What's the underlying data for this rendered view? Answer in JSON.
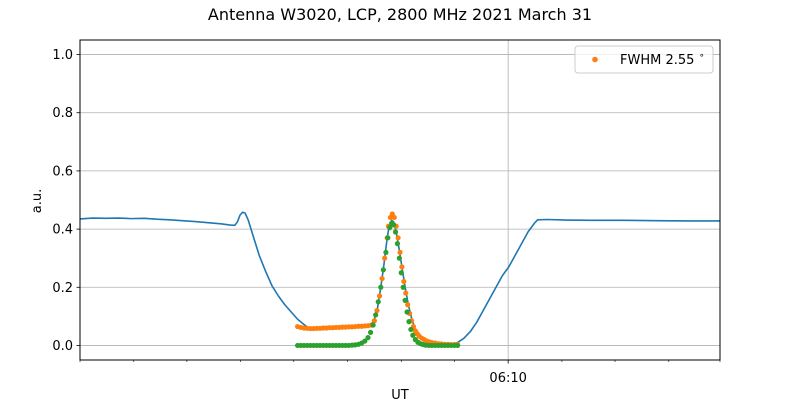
{
  "chart_data": {
    "type": "line",
    "title": "Antenna W3020, LCP, 2800 MHz 2021 March 31",
    "xlabel": "UT",
    "ylabel": "a.u.",
    "xlim": [
      0,
      100
    ],
    "ylim": [
      -0.05,
      1.05
    ],
    "grid": true,
    "legend_position": "top-right",
    "x_major_ticks": [
      {
        "x": 66.9,
        "label": "06:10"
      }
    ],
    "x_minor_ticks": [
      0,
      8.4,
      16.7,
      25.1,
      33.4,
      41.8,
      50.2,
      58.5,
      75.3,
      83.6,
      92.0,
      100
    ],
    "y_ticks": [
      0.0,
      0.2,
      0.4,
      0.6,
      0.8,
      1.0
    ],
    "y_tick_labels": [
      "0.0",
      "0.2",
      "0.4",
      "0.6",
      "0.8",
      "1.0"
    ],
    "series": [
      {
        "name": "",
        "style": "line",
        "color": "#1f77b4",
        "points": [
          [
            0,
            0.435
          ],
          [
            2,
            0.438
          ],
          [
            4,
            0.437
          ],
          [
            6,
            0.438
          ],
          [
            8,
            0.436
          ],
          [
            10,
            0.437
          ],
          [
            12,
            0.434
          ],
          [
            14,
            0.432
          ],
          [
            16,
            0.429
          ],
          [
            18,
            0.426
          ],
          [
            20,
            0.422
          ],
          [
            22,
            0.418
          ],
          [
            23.5,
            0.414
          ],
          [
            24.2,
            0.413
          ],
          [
            24.6,
            0.425
          ],
          [
            25.0,
            0.448
          ],
          [
            25.4,
            0.458
          ],
          [
            25.8,
            0.455
          ],
          [
            26.3,
            0.43
          ],
          [
            27.0,
            0.38
          ],
          [
            28.0,
            0.31
          ],
          [
            29.0,
            0.255
          ],
          [
            30.0,
            0.205
          ],
          [
            31.0,
            0.17
          ],
          [
            32.0,
            0.14
          ],
          [
            33.0,
            0.115
          ],
          [
            34.0,
            0.09
          ],
          [
            35.0,
            0.072
          ],
          [
            35.6,
            0.062
          ],
          [
            36.5,
            0.057
          ],
          [
            38,
            0.058
          ],
          [
            40,
            0.06
          ],
          [
            42,
            0.063
          ],
          [
            44,
            0.066
          ],
          [
            45,
            0.068
          ],
          [
            45.5,
            0.072
          ],
          [
            46.0,
            0.09
          ],
          [
            46.5,
            0.13
          ],
          [
            47.0,
            0.2
          ],
          [
            47.5,
            0.28
          ],
          [
            48.0,
            0.37
          ],
          [
            48.3,
            0.41
          ],
          [
            48.7,
            0.43
          ],
          [
            49.0,
            0.425
          ],
          [
            49.4,
            0.39
          ],
          [
            49.8,
            0.34
          ],
          [
            50.3,
            0.27
          ],
          [
            50.8,
            0.2
          ],
          [
            51.3,
            0.14
          ],
          [
            51.8,
            0.095
          ],
          [
            52.3,
            0.06
          ],
          [
            53,
            0.035
          ],
          [
            54,
            0.018
          ],
          [
            55,
            0.008
          ],
          [
            56,
            0.004
          ],
          [
            57,
            0.003
          ],
          [
            58,
            0.004
          ],
          [
            59,
            0.01
          ],
          [
            60,
            0.025
          ],
          [
            61,
            0.048
          ],
          [
            62,
            0.08
          ],
          [
            63,
            0.12
          ],
          [
            64,
            0.16
          ],
          [
            65,
            0.2
          ],
          [
            66,
            0.24
          ],
          [
            67,
            0.27
          ],
          [
            68,
            0.31
          ],
          [
            69,
            0.35
          ],
          [
            70,
            0.39
          ],
          [
            71,
            0.42
          ],
          [
            71.5,
            0.432
          ],
          [
            73,
            0.433
          ],
          [
            76,
            0.431
          ],
          [
            80,
            0.43
          ],
          [
            85,
            0.43
          ],
          [
            90,
            0.429
          ],
          [
            95,
            0.428
          ],
          [
            100,
            0.428
          ]
        ]
      },
      {
        "name": "FWHM 2.55$^\\circ$",
        "legend_label": "FWHM 2.55",
        "legend_superscript": "∘",
        "style": "scatter",
        "color": "#ff7f0e",
        "points": [
          [
            34.0,
            0.065
          ],
          [
            34.5,
            0.062
          ],
          [
            35.0,
            0.06
          ],
          [
            35.5,
            0.059
          ],
          [
            36.0,
            0.058
          ],
          [
            36.5,
            0.058
          ],
          [
            37.0,
            0.059
          ],
          [
            37.5,
            0.059
          ],
          [
            38.0,
            0.06
          ],
          [
            38.5,
            0.06
          ],
          [
            39.0,
            0.061
          ],
          [
            39.5,
            0.061
          ],
          [
            40.0,
            0.062
          ],
          [
            40.5,
            0.062
          ],
          [
            41.0,
            0.063
          ],
          [
            41.5,
            0.063
          ],
          [
            42.0,
            0.064
          ],
          [
            42.5,
            0.064
          ],
          [
            43.0,
            0.065
          ],
          [
            43.5,
            0.066
          ],
          [
            44.0,
            0.066
          ],
          [
            44.5,
            0.067
          ],
          [
            45.0,
            0.068
          ],
          [
            45.5,
            0.07
          ],
          [
            46.0,
            0.085
          ],
          [
            46.4,
            0.12
          ],
          [
            46.8,
            0.17
          ],
          [
            47.2,
            0.23
          ],
          [
            47.6,
            0.3
          ],
          [
            48.0,
            0.37
          ],
          [
            48.2,
            0.41
          ],
          [
            48.5,
            0.44
          ],
          [
            48.8,
            0.452
          ],
          [
            49.1,
            0.44
          ],
          [
            49.4,
            0.41
          ],
          [
            49.7,
            0.37
          ],
          [
            50.0,
            0.32
          ],
          [
            50.3,
            0.27
          ],
          [
            50.6,
            0.22
          ],
          [
            50.9,
            0.18
          ],
          [
            51.2,
            0.14
          ],
          [
            51.5,
            0.11
          ],
          [
            51.8,
            0.085
          ],
          [
            52.1,
            0.065
          ],
          [
            52.4,
            0.05
          ],
          [
            52.7,
            0.04
          ],
          [
            53.0,
            0.032
          ],
          [
            53.4,
            0.025
          ],
          [
            53.8,
            0.02
          ],
          [
            54.2,
            0.015
          ],
          [
            54.6,
            0.012
          ],
          [
            55.0,
            0.01
          ],
          [
            55.5,
            0.008
          ],
          [
            56.0,
            0.006
          ],
          [
            56.5,
            0.005
          ],
          [
            57.0,
            0.004
          ],
          [
            57.5,
            0.004
          ],
          [
            58.0,
            0.003
          ],
          [
            58.5,
            0.003
          ],
          [
            59.0,
            0.003
          ]
        ]
      },
      {
        "name": "",
        "style": "scatter",
        "color": "#2ca02c",
        "points": [
          [
            34.0,
            0.0
          ],
          [
            34.5,
            0.0
          ],
          [
            35.0,
            0.0
          ],
          [
            35.5,
            0.0
          ],
          [
            36.0,
            0.0
          ],
          [
            36.5,
            0.0
          ],
          [
            37.0,
            0.0
          ],
          [
            37.5,
            0.0
          ],
          [
            38.0,
            0.0
          ],
          [
            38.5,
            0.0
          ],
          [
            39.0,
            0.0
          ],
          [
            39.5,
            0.0
          ],
          [
            40.0,
            0.0
          ],
          [
            40.5,
            0.0
          ],
          [
            41.0,
            0.0
          ],
          [
            41.5,
            0.0
          ],
          [
            42.0,
            0.0
          ],
          [
            42.5,
            0.001
          ],
          [
            43.0,
            0.002
          ],
          [
            43.5,
            0.004
          ],
          [
            44.0,
            0.008
          ],
          [
            44.5,
            0.015
          ],
          [
            45.0,
            0.027
          ],
          [
            45.4,
            0.045
          ],
          [
            45.8,
            0.07
          ],
          [
            46.2,
            0.105
          ],
          [
            46.6,
            0.15
          ],
          [
            47.0,
            0.2
          ],
          [
            47.4,
            0.26
          ],
          [
            47.8,
            0.32
          ],
          [
            48.1,
            0.37
          ],
          [
            48.4,
            0.405
          ],
          [
            48.7,
            0.42
          ],
          [
            49.0,
            0.415
          ],
          [
            49.3,
            0.39
          ],
          [
            49.6,
            0.35
          ],
          [
            49.9,
            0.3
          ],
          [
            50.2,
            0.25
          ],
          [
            50.5,
            0.2
          ],
          [
            50.8,
            0.155
          ],
          [
            51.1,
            0.115
          ],
          [
            51.4,
            0.082
          ],
          [
            51.7,
            0.055
          ],
          [
            52.0,
            0.035
          ],
          [
            52.4,
            0.02
          ],
          [
            52.8,
            0.011
          ],
          [
            53.2,
            0.006
          ],
          [
            53.6,
            0.003
          ],
          [
            54.0,
            0.001
          ],
          [
            54.5,
            0.0
          ],
          [
            55.0,
            0.0
          ],
          [
            55.5,
            0.0
          ],
          [
            56.0,
            0.0
          ],
          [
            56.5,
            0.0
          ],
          [
            57.0,
            0.0
          ],
          [
            57.5,
            0.0
          ],
          [
            58.0,
            0.0
          ],
          [
            58.5,
            0.0
          ],
          [
            59.0,
            0.0
          ]
        ]
      }
    ]
  }
}
